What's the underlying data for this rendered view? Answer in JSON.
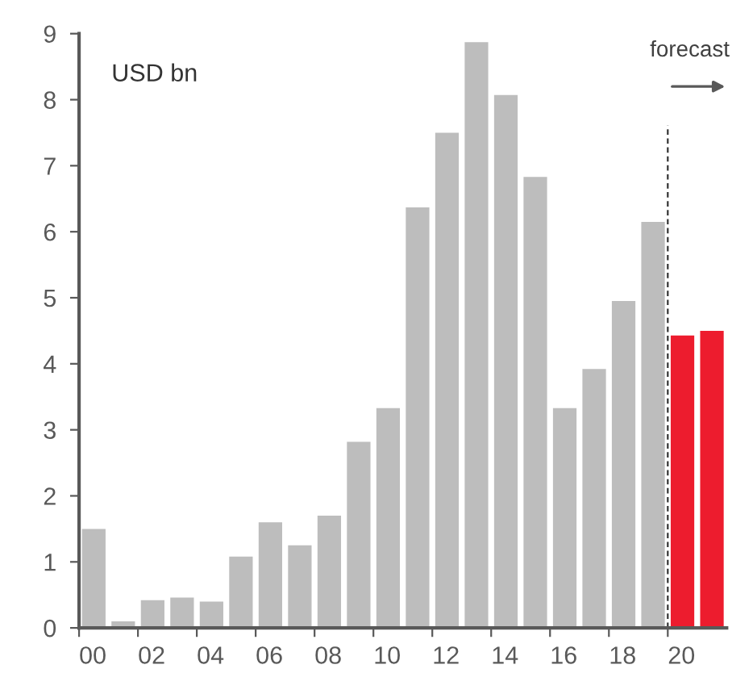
{
  "chart_data": {
    "type": "bar",
    "categories": [
      "00",
      null,
      "02",
      null,
      "04",
      null,
      "06",
      null,
      "08",
      null,
      "10",
      null,
      "12",
      null,
      "14",
      null,
      "16",
      null,
      "18",
      null,
      "20",
      null
    ],
    "values": [
      1.5,
      0.1,
      0.42,
      0.46,
      0.4,
      1.08,
      1.6,
      1.25,
      1.7,
      2.82,
      3.33,
      6.37,
      7.5,
      8.87,
      8.07,
      6.83,
      3.33,
      3.92,
      4.95,
      6.15,
      4.43,
      4.5
    ],
    "colors": [
      "#bdbdbd",
      "#bdbdbd",
      "#bdbdbd",
      "#bdbdbd",
      "#bdbdbd",
      "#bdbdbd",
      "#bdbdbd",
      "#bdbdbd",
      "#bdbdbd",
      "#bdbdbd",
      "#bdbdbd",
      "#bdbdbd",
      "#bdbdbd",
      "#bdbdbd",
      "#bdbdbd",
      "#bdbdbd",
      "#bdbdbd",
      "#bdbdbd",
      "#bdbdbd",
      "#bdbdbd",
      "#ed1c2e",
      "#ed1c2e"
    ],
    "ylabel": "USD bn",
    "ylim": [
      0,
      9
    ],
    "yticks": [
      0,
      1,
      2,
      3,
      4,
      5,
      6,
      7,
      8,
      9
    ],
    "annotations": [
      "forecast"
    ],
    "grid": false,
    "legend": false
  }
}
